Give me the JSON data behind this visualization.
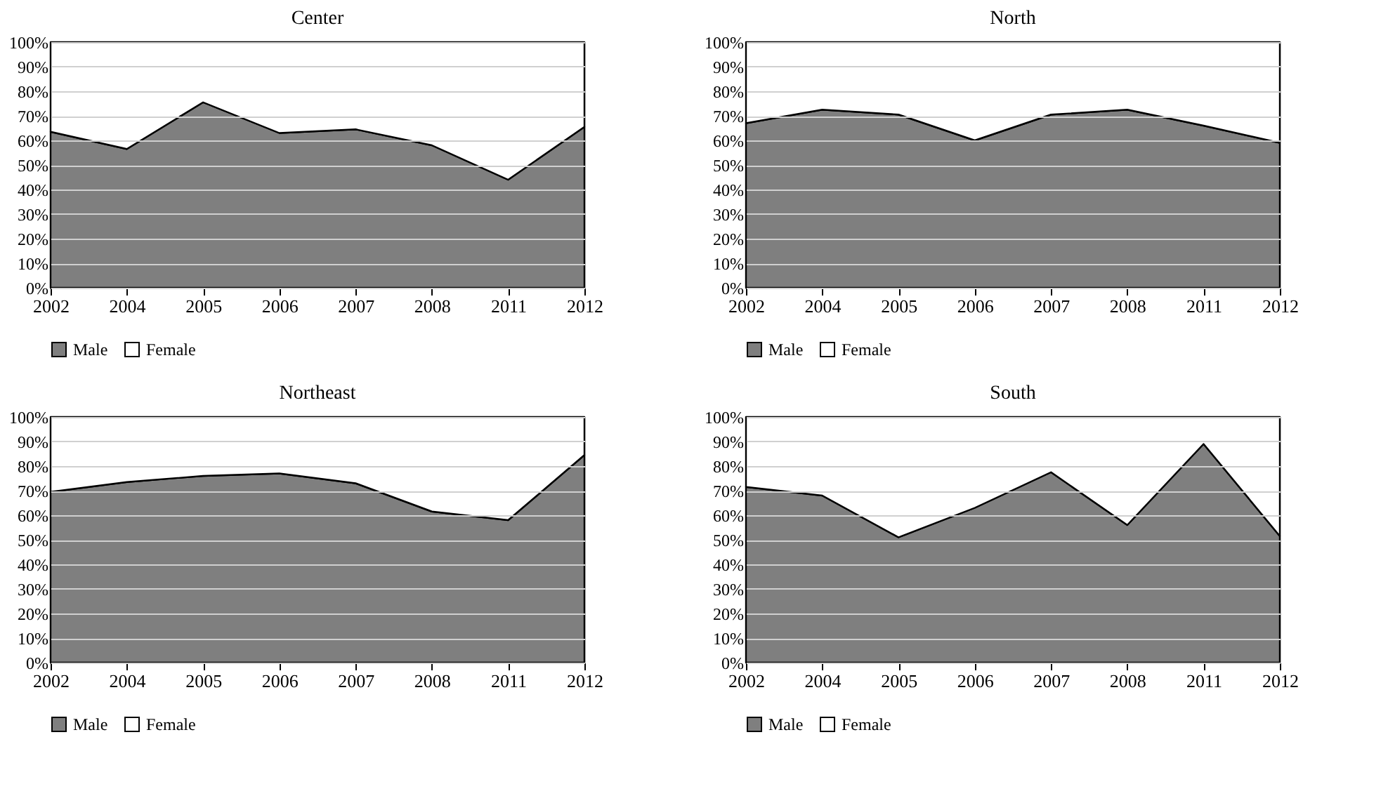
{
  "chart_data": [
    {
      "type": "area",
      "title": "Center",
      "stacked": true,
      "categories": [
        "2002",
        "2004",
        "2005",
        "2006",
        "2007",
        "2008",
        "2011",
        "2012"
      ],
      "series": [
        {
          "name": "Male",
          "color": "#7f7f7f",
          "values": [
            63.5,
            56.5,
            75.5,
            63,
            64.5,
            58,
            44,
            65.5
          ]
        },
        {
          "name": "Female",
          "color": "#ffffff",
          "values": [
            36.5,
            43.5,
            24.5,
            37,
            35.5,
            42,
            56,
            34.5
          ]
        }
      ],
      "ylim": [
        0,
        100
      ],
      "yticks": [
        {
          "value": 0,
          "label": "0%"
        },
        {
          "value": 10,
          "label": "10%"
        },
        {
          "value": 20,
          "label": "20%"
        },
        {
          "value": 30,
          "label": "30%"
        },
        {
          "value": 40,
          "label": "40%"
        },
        {
          "value": 50,
          "label": "50%"
        },
        {
          "value": 60,
          "label": "60%"
        },
        {
          "value": 70,
          "label": "70%"
        },
        {
          "value": 80,
          "label": "80%"
        },
        {
          "value": 90,
          "label": "90%"
        },
        {
          "value": 100,
          "label": "100%"
        }
      ],
      "grid": "y",
      "legend": "bottom"
    },
    {
      "type": "area",
      "title": "North",
      "stacked": true,
      "categories": [
        "2002",
        "2004",
        "2005",
        "2006",
        "2007",
        "2008",
        "2011",
        "2012"
      ],
      "series": [
        {
          "name": "Male",
          "color": "#7f7f7f",
          "values": [
            67,
            72.5,
            70.5,
            60,
            70.5,
            72.5,
            66,
            59
          ]
        },
        {
          "name": "Female",
          "color": "#ffffff",
          "values": [
            33,
            27.5,
            29.5,
            40,
            29.5,
            27.5,
            34,
            41
          ]
        }
      ],
      "ylim": [
        0,
        100
      ],
      "yticks": [
        {
          "value": 0,
          "label": "0%"
        },
        {
          "value": 10,
          "label": "10%"
        },
        {
          "value": 20,
          "label": "20%"
        },
        {
          "value": 30,
          "label": "30%"
        },
        {
          "value": 40,
          "label": "40%"
        },
        {
          "value": 50,
          "label": "50%"
        },
        {
          "value": 60,
          "label": "60%"
        },
        {
          "value": 70,
          "label": "70%"
        },
        {
          "value": 80,
          "label": "80%"
        },
        {
          "value": 90,
          "label": "90%"
        },
        {
          "value": 100,
          "label": "100%"
        }
      ],
      "grid": "y",
      "legend": "bottom"
    },
    {
      "type": "area",
      "title": "Northeast",
      "stacked": true,
      "categories": [
        "2002",
        "2004",
        "2005",
        "2006",
        "2007",
        "2008",
        "2011",
        "2012"
      ],
      "series": [
        {
          "name": "Male",
          "color": "#7f7f7f",
          "values": [
            69.5,
            73.5,
            76,
            77,
            73,
            61.5,
            58,
            84.5
          ]
        },
        {
          "name": "Female",
          "color": "#ffffff",
          "values": [
            30.5,
            26.5,
            24,
            23,
            27,
            38.5,
            42,
            15.5
          ]
        }
      ],
      "ylim": [
        0,
        100
      ],
      "yticks": [
        {
          "value": 0,
          "label": "0%"
        },
        {
          "value": 10,
          "label": "10%"
        },
        {
          "value": 20,
          "label": "20%"
        },
        {
          "value": 30,
          "label": "30%"
        },
        {
          "value": 40,
          "label": "40%"
        },
        {
          "value": 50,
          "label": "50%"
        },
        {
          "value": 60,
          "label": "60%"
        },
        {
          "value": 70,
          "label": "70%"
        },
        {
          "value": 80,
          "label": "80%"
        },
        {
          "value": 90,
          "label": "90%"
        },
        {
          "value": 100,
          "label": "100%"
        }
      ],
      "grid": "y",
      "legend": "bottom"
    },
    {
      "type": "area",
      "title": "South",
      "stacked": true,
      "categories": [
        "2002",
        "2004",
        "2005",
        "2006",
        "2007",
        "2008",
        "2011",
        "2012"
      ],
      "series": [
        {
          "name": "Male",
          "color": "#7f7f7f",
          "values": [
            71.5,
            68,
            51,
            63,
            77.5,
            56,
            89,
            51.5
          ]
        },
        {
          "name": "Female",
          "color": "#ffffff",
          "values": [
            28.5,
            32,
            49,
            37,
            22.5,
            44,
            11,
            48.5
          ]
        }
      ],
      "ylim": [
        0,
        100
      ],
      "yticks": [
        {
          "value": 0,
          "label": "0%"
        },
        {
          "value": 10,
          "label": "10%"
        },
        {
          "value": 20,
          "label": "20%"
        },
        {
          "value": 30,
          "label": "30%"
        },
        {
          "value": 40,
          "label": "40%"
        },
        {
          "value": 50,
          "label": "50%"
        },
        {
          "value": 60,
          "label": "60%"
        },
        {
          "value": 70,
          "label": "70%"
        },
        {
          "value": 80,
          "label": "80%"
        },
        {
          "value": 90,
          "label": "90%"
        },
        {
          "value": 100,
          "label": "100%"
        }
      ],
      "grid": "y",
      "legend": "bottom"
    }
  ]
}
